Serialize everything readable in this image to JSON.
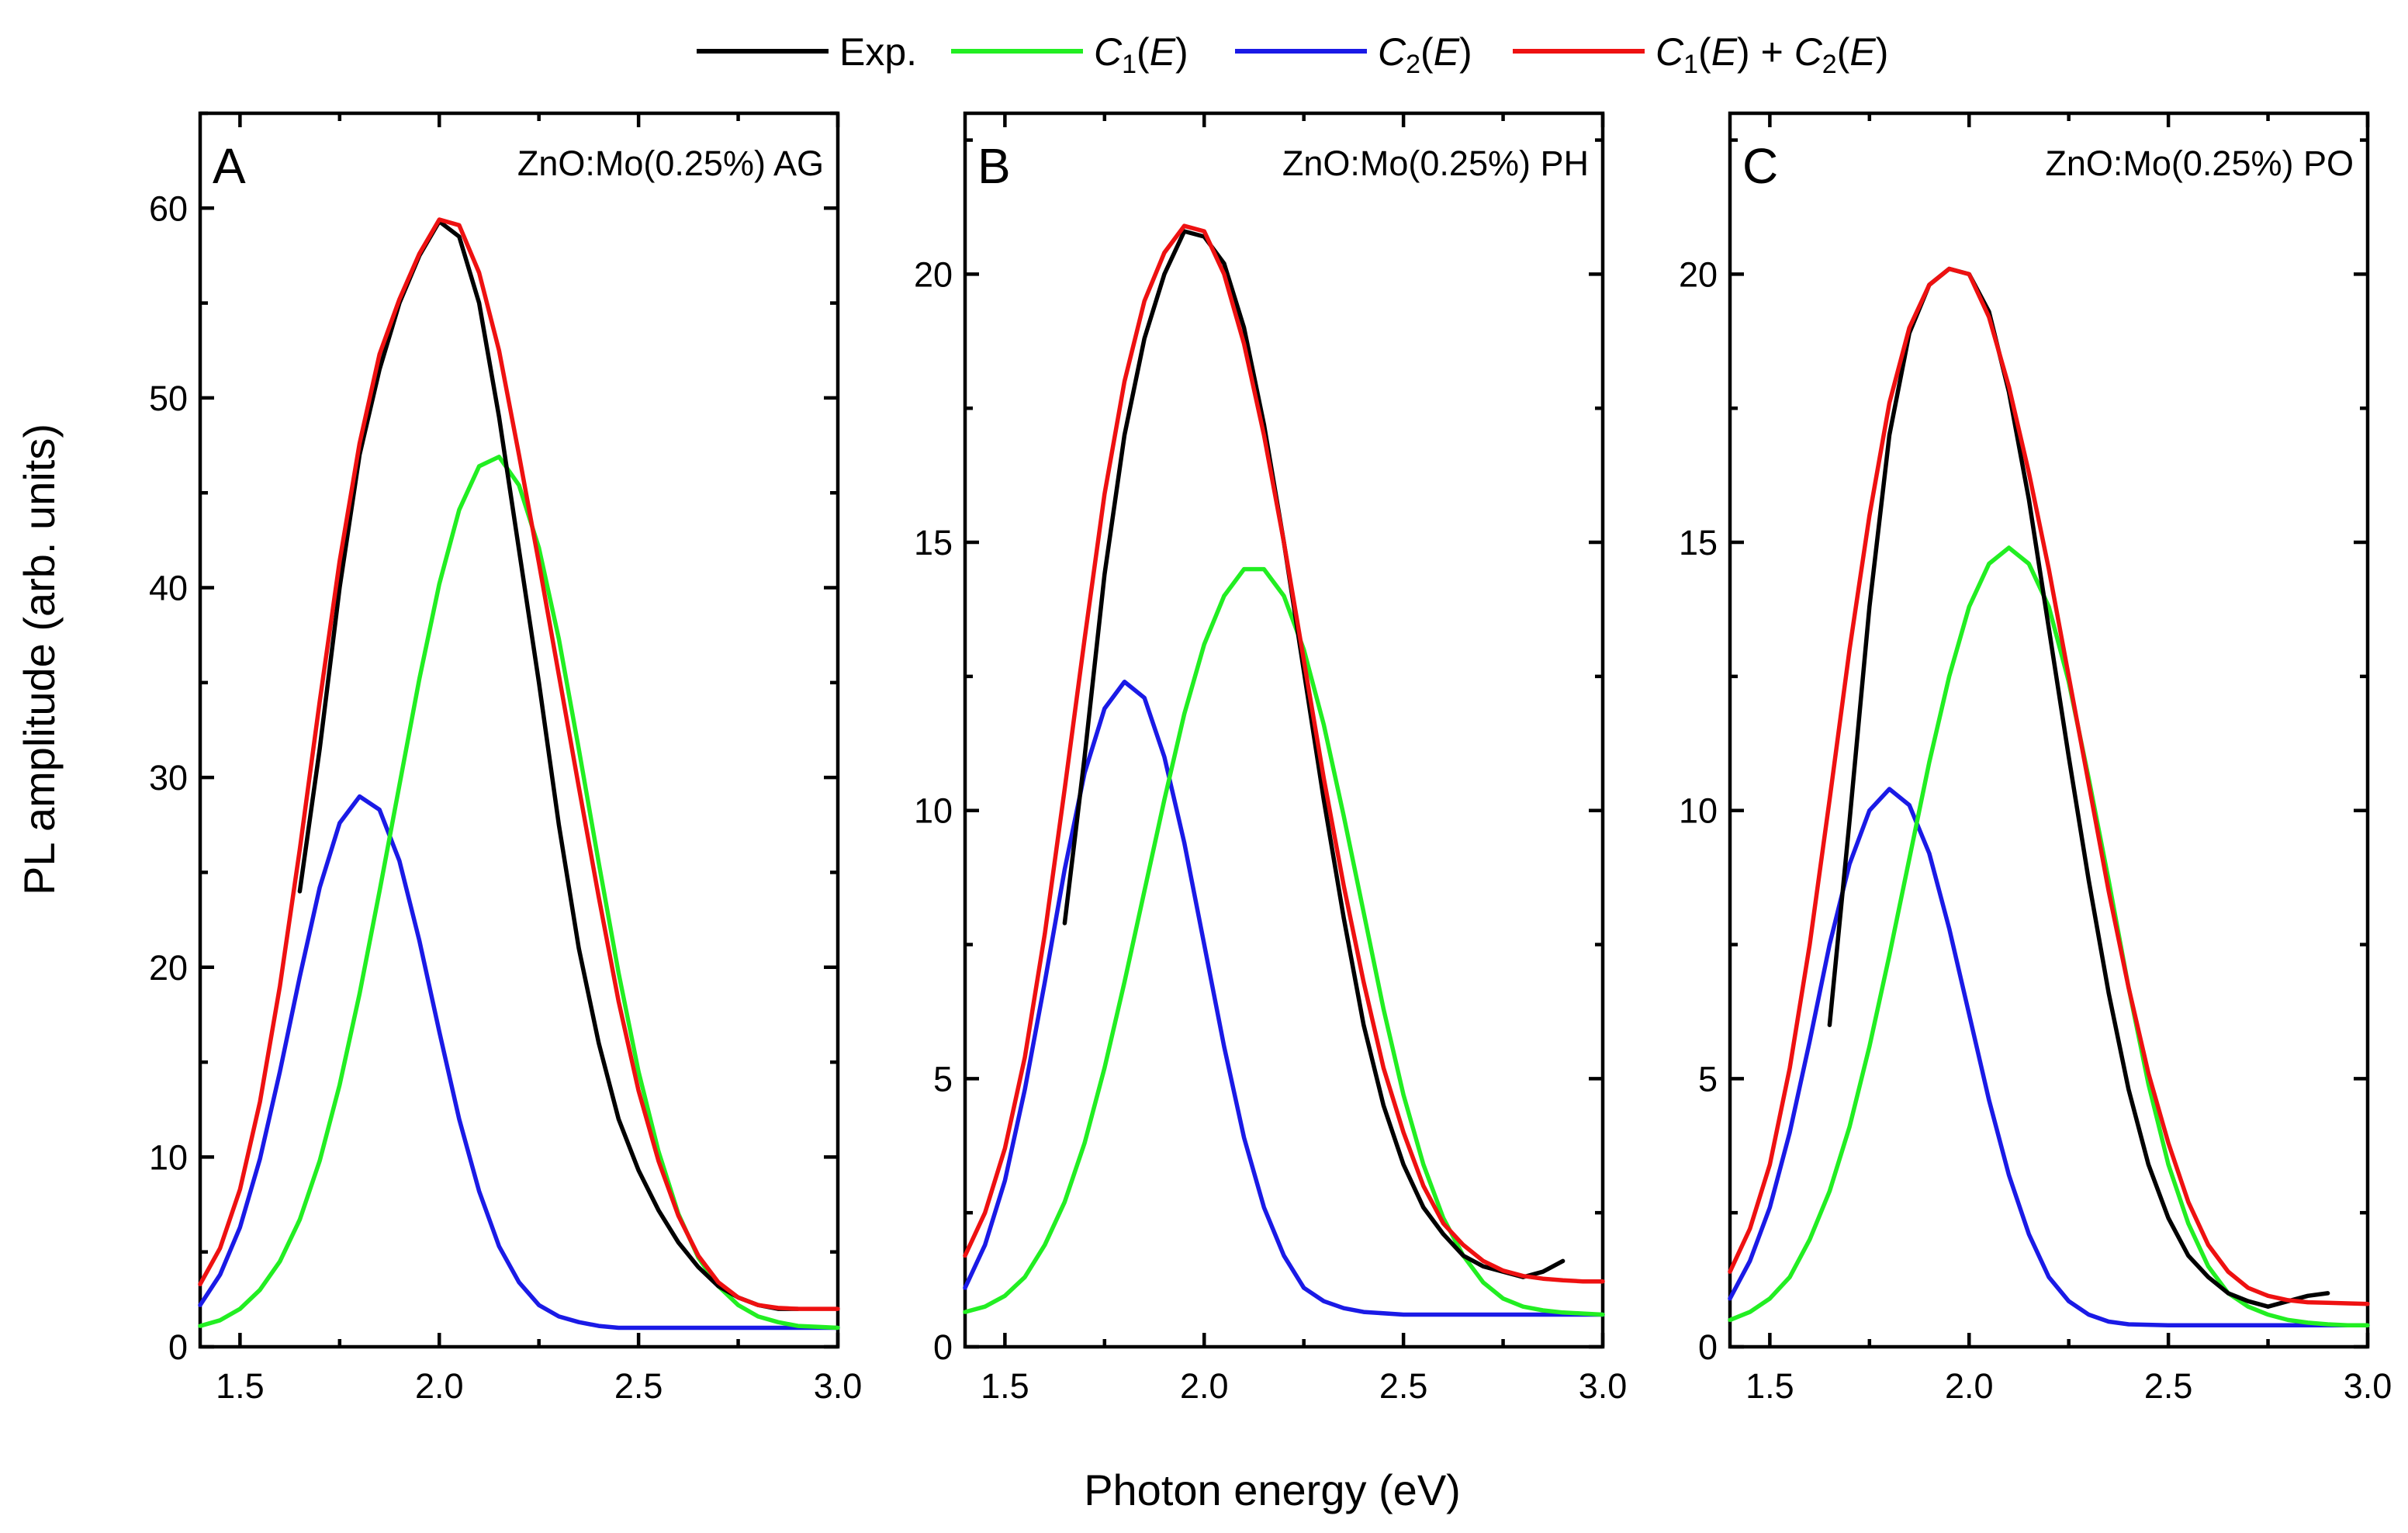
{
  "legend": {
    "entries": [
      {
        "key": "exp",
        "label": "Exp.",
        "color": "#000000"
      },
      {
        "key": "c1",
        "label": "C1(E)",
        "color": "#22ee22"
      },
      {
        "key": "c2",
        "label": "C2(E)",
        "color": "#1a1ae6"
      },
      {
        "key": "sum",
        "label": "C1(E) + C2(E)",
        "color": "#ee1111"
      }
    ]
  },
  "axes": {
    "xlabel": "Photon energy (eV)",
    "ylabel": "PL amplitude (arb. units)"
  },
  "chart_data": [
    {
      "type": "line",
      "panel": "A",
      "title": "ZnO:Mo(0.25%) AG",
      "xlabel": "Photon energy (eV)",
      "ylabel": "PL amplitude (arb. units)",
      "xlim": [
        1.4,
        3.0
      ],
      "ylim": [
        0,
        65
      ],
      "xticks": [
        1.5,
        2.0,
        2.5,
        3.0
      ],
      "xtick_labels": [
        "1.5",
        "2.0",
        "2.5",
        "3.0"
      ],
      "yticks": [
        0,
        10,
        20,
        30,
        40,
        50,
        60
      ],
      "ytick_labels": [
        "0",
        "10",
        "20",
        "30",
        "40",
        "50",
        "60"
      ],
      "series": [
        {
          "key": "exp",
          "name": "Exp.",
          "x": [
            1.65,
            1.7,
            1.75,
            1.8,
            1.85,
            1.9,
            1.95,
            2.0,
            2.05,
            2.1,
            2.15,
            2.2,
            2.25,
            2.3,
            2.35,
            2.4,
            2.45,
            2.5,
            2.55,
            2.6,
            2.65,
            2.7,
            2.75,
            2.8,
            2.85,
            2.9
          ],
          "y": [
            24.0,
            31.5,
            40.0,
            47.0,
            51.5,
            55.0,
            57.5,
            59.3,
            58.5,
            55.0,
            49.0,
            42.0,
            35.0,
            27.5,
            21.0,
            16.0,
            12.0,
            9.3,
            7.2,
            5.5,
            4.2,
            3.2,
            2.6,
            2.2,
            2.0,
            2.0
          ]
        },
        {
          "key": "c1",
          "name": "C1(E)",
          "x": [
            1.4,
            1.45,
            1.5,
            1.55,
            1.6,
            1.65,
            1.7,
            1.75,
            1.8,
            1.85,
            1.9,
            1.95,
            2.0,
            2.05,
            2.1,
            2.15,
            2.2,
            2.25,
            2.3,
            2.35,
            2.4,
            2.45,
            2.5,
            2.55,
            2.6,
            2.65,
            2.7,
            2.75,
            2.8,
            2.85,
            2.9,
            2.95,
            3.0
          ],
          "y": [
            1.1,
            1.4,
            2.0,
            3.0,
            4.5,
            6.7,
            9.8,
            13.8,
            18.6,
            24.0,
            29.6,
            35.2,
            40.2,
            44.1,
            46.4,
            46.9,
            45.4,
            42.1,
            37.3,
            31.5,
            25.5,
            19.7,
            14.5,
            10.3,
            7.0,
            4.7,
            3.2,
            2.2,
            1.6,
            1.3,
            1.1,
            1.05,
            1.0
          ]
        },
        {
          "key": "c2",
          "name": "C2(E)",
          "x": [
            1.4,
            1.45,
            1.5,
            1.55,
            1.6,
            1.65,
            1.7,
            1.75,
            1.8,
            1.85,
            1.9,
            1.95,
            2.0,
            2.05,
            2.1,
            2.15,
            2.2,
            2.25,
            2.3,
            2.35,
            2.4,
            2.45,
            2.5,
            2.6,
            2.7,
            2.8,
            2.9,
            3.0
          ],
          "y": [
            2.2,
            3.8,
            6.3,
            9.9,
            14.5,
            19.5,
            24.2,
            27.6,
            29.0,
            28.3,
            25.6,
            21.4,
            16.6,
            12.0,
            8.2,
            5.3,
            3.4,
            2.2,
            1.6,
            1.3,
            1.1,
            1.0,
            1.0,
            1.0,
            1.0,
            1.0,
            1.0,
            1.0
          ]
        },
        {
          "key": "sum",
          "name": "C1(E) + C2(E)",
          "x": [
            1.4,
            1.45,
            1.5,
            1.55,
            1.6,
            1.65,
            1.7,
            1.75,
            1.8,
            1.85,
            1.9,
            1.95,
            2.0,
            2.05,
            2.1,
            2.15,
            2.2,
            2.25,
            2.3,
            2.35,
            2.4,
            2.45,
            2.5,
            2.55,
            2.6,
            2.65,
            2.7,
            2.75,
            2.8,
            2.85,
            2.9,
            2.95,
            3.0
          ],
          "y": [
            3.3,
            5.2,
            8.3,
            12.9,
            19.0,
            26.2,
            34.0,
            41.4,
            47.6,
            52.3,
            55.2,
            57.6,
            59.4,
            59.1,
            56.6,
            52.5,
            47.0,
            41.3,
            35.4,
            29.5,
            23.7,
            18.2,
            13.5,
            9.8,
            6.9,
            4.8,
            3.4,
            2.6,
            2.2,
            2.05,
            2.0,
            2.0,
            2.0
          ]
        }
      ]
    },
    {
      "type": "line",
      "panel": "B",
      "title": "ZnO:Mo(0.25%) PH",
      "xlabel": "Photon energy (eV)",
      "ylabel": "",
      "xlim": [
        1.4,
        3.0
      ],
      "ylim": [
        0,
        23
      ],
      "xticks": [
        1.5,
        2.0,
        2.5,
        3.0
      ],
      "xtick_labels": [
        "1.5",
        "2.0",
        "2.5",
        "3.0"
      ],
      "yticks": [
        0,
        5,
        10,
        15,
        20
      ],
      "ytick_labels": [
        "0",
        "5",
        "10",
        "15",
        "20"
      ],
      "series": [
        {
          "key": "exp",
          "name": "Exp.",
          "x": [
            1.65,
            1.7,
            1.75,
            1.8,
            1.85,
            1.9,
            1.95,
            2.0,
            2.05,
            2.1,
            2.15,
            2.2,
            2.25,
            2.3,
            2.35,
            2.4,
            2.45,
            2.5,
            2.55,
            2.6,
            2.65,
            2.7,
            2.75,
            2.8,
            2.85,
            2.9
          ],
          "y": [
            7.9,
            11.0,
            14.4,
            17.0,
            18.8,
            20.0,
            20.8,
            20.7,
            20.2,
            19.0,
            17.2,
            15.0,
            12.6,
            10.2,
            8.0,
            6.0,
            4.5,
            3.4,
            2.6,
            2.1,
            1.7,
            1.5,
            1.4,
            1.3,
            1.4,
            1.6
          ]
        },
        {
          "key": "c1",
          "name": "C1(E)",
          "x": [
            1.4,
            1.45,
            1.5,
            1.55,
            1.6,
            1.65,
            1.7,
            1.75,
            1.8,
            1.85,
            1.9,
            1.95,
            2.0,
            2.05,
            2.1,
            2.15,
            2.2,
            2.25,
            2.3,
            2.35,
            2.4,
            2.45,
            2.5,
            2.55,
            2.6,
            2.65,
            2.7,
            2.75,
            2.8,
            2.85,
            2.9,
            2.95,
            3.0
          ],
          "y": [
            0.65,
            0.75,
            0.95,
            1.3,
            1.9,
            2.7,
            3.8,
            5.2,
            6.8,
            8.5,
            10.2,
            11.8,
            13.1,
            14.0,
            14.5,
            14.5,
            14.0,
            13.0,
            11.6,
            9.9,
            8.1,
            6.3,
            4.7,
            3.4,
            2.4,
            1.7,
            1.2,
            0.9,
            0.75,
            0.68,
            0.64,
            0.62,
            0.6
          ]
        },
        {
          "key": "c2",
          "name": "C2(E)",
          "x": [
            1.4,
            1.45,
            1.5,
            1.55,
            1.6,
            1.65,
            1.7,
            1.75,
            1.8,
            1.85,
            1.9,
            1.95,
            2.0,
            2.05,
            2.1,
            2.15,
            2.2,
            2.25,
            2.3,
            2.35,
            2.4,
            2.5,
            2.6,
            2.7,
            2.8,
            2.9,
            3.0
          ],
          "y": [
            1.1,
            1.9,
            3.1,
            4.8,
            6.8,
            8.9,
            10.7,
            11.9,
            12.4,
            12.1,
            11.0,
            9.4,
            7.5,
            5.6,
            3.9,
            2.6,
            1.7,
            1.1,
            0.85,
            0.72,
            0.65,
            0.6,
            0.6,
            0.6,
            0.6,
            0.6,
            0.6
          ]
        },
        {
          "key": "sum",
          "name": "C1(E) + C2(E)",
          "x": [
            1.4,
            1.45,
            1.5,
            1.55,
            1.6,
            1.65,
            1.7,
            1.75,
            1.8,
            1.85,
            1.9,
            1.95,
            2.0,
            2.05,
            2.1,
            2.15,
            2.2,
            2.25,
            2.3,
            2.35,
            2.4,
            2.45,
            2.5,
            2.55,
            2.6,
            2.65,
            2.7,
            2.75,
            2.8,
            2.85,
            2.9,
            2.95,
            3.0
          ],
          "y": [
            1.7,
            2.5,
            3.7,
            5.4,
            7.7,
            10.4,
            13.2,
            15.9,
            18.0,
            19.5,
            20.4,
            20.9,
            20.8,
            20.0,
            18.7,
            17.0,
            15.0,
            12.8,
            10.6,
            8.6,
            6.8,
            5.2,
            4.0,
            3.0,
            2.3,
            1.9,
            1.6,
            1.42,
            1.32,
            1.27,
            1.24,
            1.22,
            1.22
          ]
        }
      ]
    },
    {
      "type": "line",
      "panel": "C",
      "title": "ZnO:Mo(0.25%) PO",
      "xlabel": "Photon energy (eV)",
      "ylabel": "",
      "xlim": [
        1.4,
        3.0
      ],
      "ylim": [
        0,
        23
      ],
      "xticks": [
        1.5,
        2.0,
        2.5,
        3.0
      ],
      "xtick_labels": [
        "1.5",
        "2.0",
        "2.5",
        "3.0"
      ],
      "yticks": [
        0,
        5,
        10,
        15,
        20
      ],
      "ytick_labels": [
        "0",
        "5",
        "10",
        "15",
        "20"
      ],
      "series": [
        {
          "key": "exp",
          "name": "Exp.",
          "x": [
            1.65,
            1.7,
            1.75,
            1.8,
            1.85,
            1.9,
            1.95,
            2.0,
            2.05,
            2.1,
            2.15,
            2.2,
            2.25,
            2.3,
            2.35,
            2.4,
            2.45,
            2.5,
            2.55,
            2.6,
            2.65,
            2.7,
            2.75,
            2.8,
            2.85,
            2.9
          ],
          "y": [
            6.0,
            9.8,
            13.8,
            17.0,
            18.9,
            19.8,
            20.1,
            20.0,
            19.3,
            17.8,
            15.8,
            13.4,
            11.0,
            8.7,
            6.6,
            4.8,
            3.4,
            2.4,
            1.7,
            1.3,
            1.0,
            0.85,
            0.75,
            0.85,
            0.95,
            1.0
          ]
        },
        {
          "key": "c1",
          "name": "C1(E)",
          "x": [
            1.4,
            1.45,
            1.5,
            1.55,
            1.6,
            1.65,
            1.7,
            1.75,
            1.8,
            1.85,
            1.9,
            1.95,
            2.0,
            2.05,
            2.1,
            2.15,
            2.2,
            2.25,
            2.3,
            2.35,
            2.4,
            2.45,
            2.5,
            2.55,
            2.6,
            2.65,
            2.7,
            2.75,
            2.8,
            2.85,
            2.9,
            2.95,
            3.0
          ],
          "y": [
            0.5,
            0.65,
            0.9,
            1.3,
            2.0,
            2.9,
            4.1,
            5.6,
            7.3,
            9.1,
            10.9,
            12.5,
            13.8,
            14.6,
            14.9,
            14.6,
            13.8,
            12.4,
            10.6,
            8.7,
            6.7,
            4.9,
            3.4,
            2.3,
            1.5,
            1.0,
            0.75,
            0.6,
            0.5,
            0.45,
            0.42,
            0.4,
            0.4
          ]
        },
        {
          "key": "c2",
          "name": "C2(E)",
          "x": [
            1.4,
            1.45,
            1.5,
            1.55,
            1.6,
            1.65,
            1.7,
            1.75,
            1.8,
            1.85,
            1.9,
            1.95,
            2.0,
            2.05,
            2.1,
            2.15,
            2.2,
            2.25,
            2.3,
            2.35,
            2.4,
            2.5,
            2.6,
            2.7,
            2.8,
            2.9,
            3.0
          ],
          "y": [
            0.9,
            1.6,
            2.6,
            4.0,
            5.7,
            7.5,
            9.0,
            10.0,
            10.4,
            10.1,
            9.2,
            7.8,
            6.2,
            4.6,
            3.2,
            2.1,
            1.3,
            0.85,
            0.6,
            0.47,
            0.42,
            0.4,
            0.4,
            0.4,
            0.4,
            0.4,
            0.4
          ]
        },
        {
          "key": "sum",
          "name": "C1(E) + C2(E)",
          "x": [
            1.4,
            1.45,
            1.5,
            1.55,
            1.6,
            1.65,
            1.7,
            1.75,
            1.8,
            1.85,
            1.9,
            1.95,
            2.0,
            2.05,
            2.1,
            2.15,
            2.2,
            2.25,
            2.3,
            2.35,
            2.4,
            2.45,
            2.5,
            2.55,
            2.6,
            2.65,
            2.7,
            2.75,
            2.8,
            2.85,
            2.9,
            2.95,
            3.0
          ],
          "y": [
            1.4,
            2.2,
            3.4,
            5.2,
            7.5,
            10.2,
            13.0,
            15.5,
            17.6,
            19.0,
            19.8,
            20.1,
            20.0,
            19.2,
            17.9,
            16.3,
            14.5,
            12.5,
            10.5,
            8.5,
            6.7,
            5.1,
            3.8,
            2.7,
            1.9,
            1.4,
            1.1,
            0.95,
            0.87,
            0.83,
            0.82,
            0.81,
            0.8
          ]
        }
      ]
    }
  ]
}
